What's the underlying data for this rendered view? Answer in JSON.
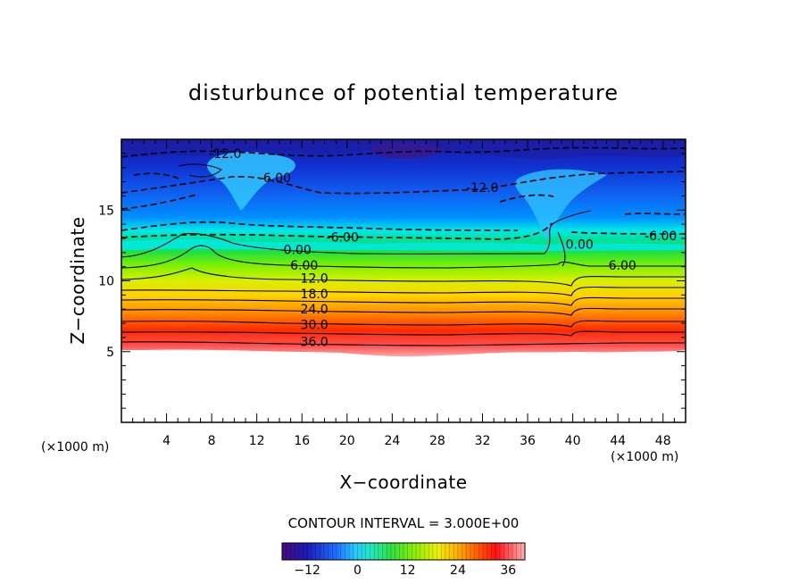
{
  "chart_data": {
    "type": "heatmap",
    "title": "disturbunce of potential temperature",
    "xlabel": "X−coordinate",
    "ylabel": "Z−coordinate",
    "x_unit": "(×1000 m)",
    "y_unit": "(×1000 m)",
    "xlim": [
      0,
      50
    ],
    "ylim": [
      0,
      20
    ],
    "x_ticks": [
      4,
      8,
      12,
      16,
      20,
      24,
      28,
      32,
      36,
      40,
      44,
      48
    ],
    "y_ticks": [
      5,
      10,
      15
    ],
    "contour_interval_text": "CONTOUR INTERVAL = 3.000E+00",
    "colorbar_range": [
      -18,
      40
    ],
    "colorbar_ticks": [
      -12,
      0,
      12,
      24,
      36
    ],
    "contour_labels": [
      {
        "text": "-12.0",
        "x": 9.2,
        "z": 19.0
      },
      {
        "text": "-6.00",
        "x": 13.6,
        "z": 17.3
      },
      {
        "text": "-12.0",
        "x": 32.0,
        "z": 16.6
      },
      {
        "text": "-6.00",
        "x": 19.6,
        "z": 13.1
      },
      {
        "text": "-6.00",
        "x": 47.8,
        "z": 13.2
      },
      {
        "text": "0.00",
        "x": 15.6,
        "z": 12.2
      },
      {
        "text": "0.00",
        "x": 40.6,
        "z": 12.6
      },
      {
        "text": "6.00",
        "x": 16.2,
        "z": 11.1
      },
      {
        "text": "6.00",
        "x": 44.4,
        "z": 11.1
      },
      {
        "text": "12.0",
        "x": 17.1,
        "z": 10.2
      },
      {
        "text": "18.0",
        "x": 17.1,
        "z": 9.1
      },
      {
        "text": "24.0",
        "x": 17.1,
        "z": 8.0
      },
      {
        "text": "30.0",
        "x": 17.1,
        "z": 6.9
      },
      {
        "text": "36.0",
        "x": 17.1,
        "z": 5.7
      }
    ]
  }
}
